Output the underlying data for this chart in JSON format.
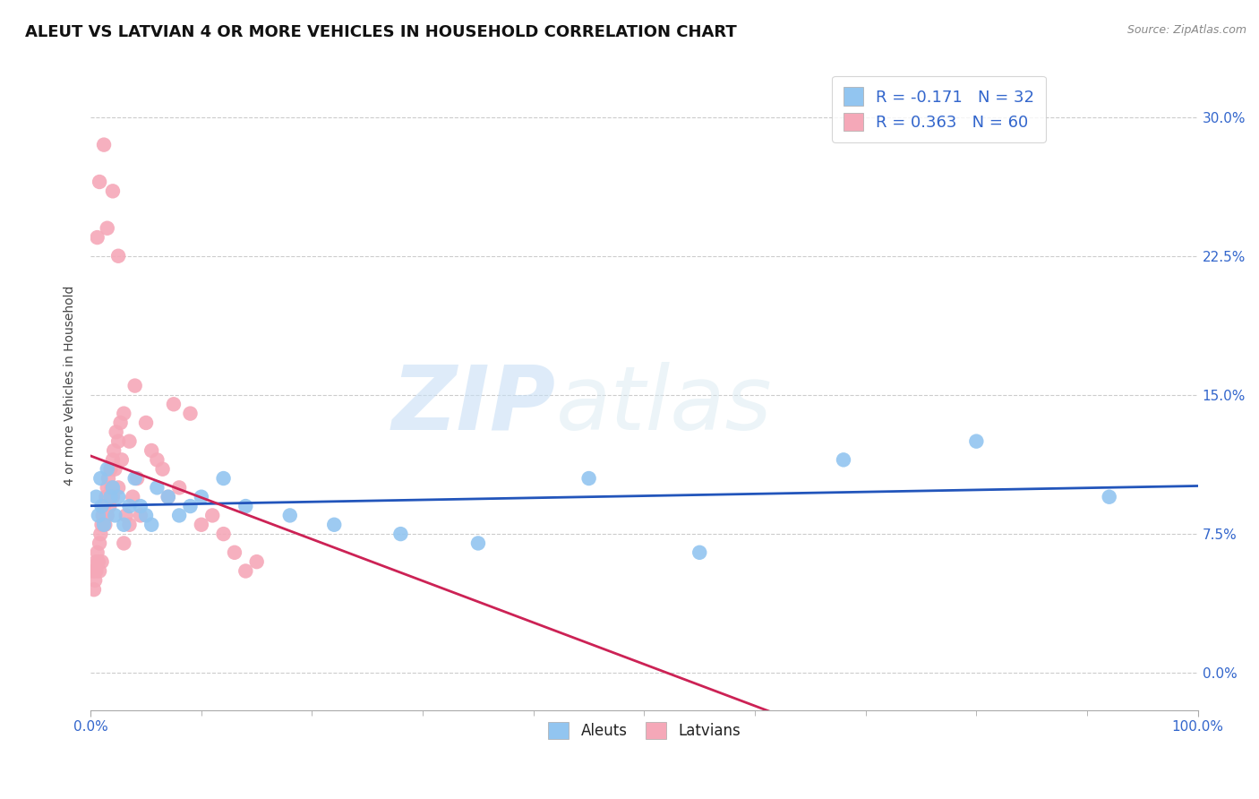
{
  "title": "ALEUT VS LATVIAN 4 OR MORE VEHICLES IN HOUSEHOLD CORRELATION CHART",
  "source_text": "Source: ZipAtlas.com",
  "xlabel": "",
  "ylabel": "4 or more Vehicles in Household",
  "watermark_zip": "ZIP",
  "watermark_atlas": "atlas",
  "legend_labels": [
    "Aleuts",
    "Latvians"
  ],
  "legend_R": [
    -0.171,
    0.363
  ],
  "legend_N": [
    32,
    60
  ],
  "aleut_color": "#92C5F0",
  "latvian_color": "#F5A8B8",
  "aleut_line_color": "#2255BB",
  "latvian_line_color": "#CC2255",
  "background_color": "#ffffff",
  "grid_color": "#cccccc",
  "xlim": [
    0.0,
    100.0
  ],
  "ylim": [
    -2.0,
    33.0
  ],
  "yticks": [
    0.0,
    7.5,
    15.0,
    22.5,
    30.0
  ],
  "xticks": [
    0.0,
    100.0
  ],
  "title_fontsize": 13,
  "label_fontsize": 10,
  "tick_fontsize": 11,
  "aleut_scatter_x": [
    0.5,
    0.7,
    0.9,
    1.0,
    1.2,
    1.5,
    1.8,
    2.0,
    2.2,
    2.5,
    3.0,
    3.5,
    4.0,
    4.5,
    5.0,
    5.5,
    6.0,
    7.0,
    8.0,
    9.0,
    10.0,
    12.0,
    14.0,
    18.0,
    22.0,
    28.0,
    35.0,
    45.0,
    55.0,
    68.0,
    80.0,
    92.0
  ],
  "aleut_scatter_y": [
    9.5,
    8.5,
    10.5,
    9.0,
    8.0,
    11.0,
    9.5,
    10.0,
    8.5,
    9.5,
    8.0,
    9.0,
    10.5,
    9.0,
    8.5,
    8.0,
    10.0,
    9.5,
    8.5,
    9.0,
    9.5,
    10.5,
    9.0,
    8.5,
    8.0,
    7.5,
    7.0,
    10.5,
    6.5,
    11.5,
    12.5,
    9.5
  ],
  "latvian_scatter_x": [
    0.2,
    0.3,
    0.4,
    0.5,
    0.5,
    0.6,
    0.7,
    0.8,
    0.8,
    0.9,
    1.0,
    1.0,
    1.1,
    1.2,
    1.3,
    1.4,
    1.5,
    1.5,
    1.6,
    1.7,
    1.8,
    1.9,
    2.0,
    2.0,
    2.1,
    2.2,
    2.3,
    2.5,
    2.5,
    2.7,
    2.8,
    3.0,
    3.0,
    3.2,
    3.5,
    3.5,
    3.8,
    4.0,
    4.2,
    4.5,
    5.0,
    5.5,
    6.0,
    6.5,
    7.0,
    7.5,
    8.0,
    9.0,
    10.0,
    11.0,
    12.0,
    13.0,
    14.0,
    15.0,
    1.5,
    2.5,
    0.6,
    0.8,
    1.2,
    2.0
  ],
  "latvian_scatter_y": [
    5.5,
    4.5,
    5.0,
    5.5,
    6.0,
    6.5,
    6.0,
    7.0,
    5.5,
    7.5,
    6.0,
    8.0,
    8.5,
    9.0,
    8.0,
    9.5,
    10.0,
    8.5,
    10.5,
    9.0,
    11.0,
    10.0,
    11.5,
    9.5,
    12.0,
    11.0,
    13.0,
    12.5,
    10.0,
    13.5,
    11.5,
    7.0,
    14.0,
    8.5,
    12.5,
    8.0,
    9.5,
    15.5,
    10.5,
    8.5,
    13.5,
    12.0,
    11.5,
    11.0,
    9.5,
    14.5,
    10.0,
    14.0,
    8.0,
    8.5,
    7.5,
    6.5,
    5.5,
    6.0,
    24.0,
    22.5,
    23.5,
    26.5,
    28.5,
    26.0
  ]
}
